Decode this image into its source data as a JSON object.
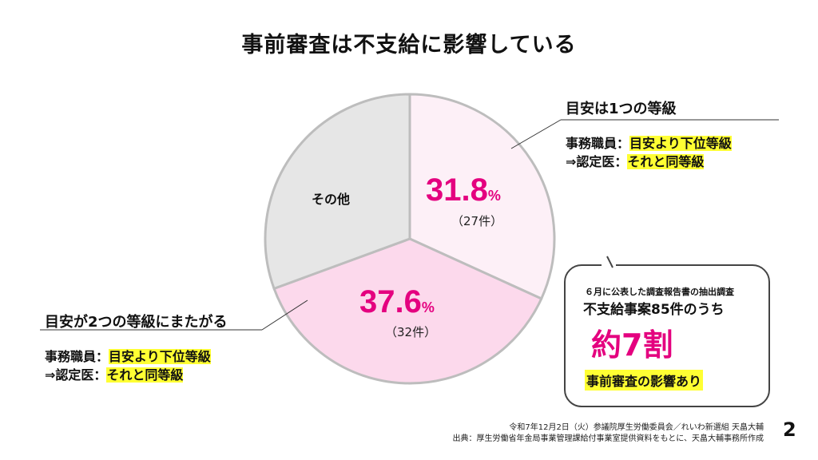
{
  "title": "事前審査は不支給に影響している",
  "chart_data": {
    "type": "pie",
    "start": "top",
    "direction": "clockwise",
    "slices": [
      {
        "label": "目安は1つの等級",
        "percent": 31.8,
        "count_label": "（27件）",
        "color": "#fdf0f7"
      },
      {
        "label": "目安が2つの等級にまたがる",
        "percent": 37.6,
        "count_label": "（32件）",
        "color": "#fcd9ec"
      },
      {
        "label": "その他",
        "percent": 30.6,
        "color": "#e6e6e6"
      }
    ],
    "pct_texts": [
      "31.8",
      "37.6"
    ],
    "pct_unit": "%"
  },
  "right_callout": {
    "heading": "目安は1つの等級",
    "line1_prefix": "事務職員：",
    "line1_hl": "目安より下位等級",
    "line2_prefix": "⇒認定医：",
    "line2_hl": "それと同等級"
  },
  "left_callout": {
    "heading": "目安が2つの等級にまたがる",
    "line1_prefix": "事務職員：",
    "line1_hl": "目安より下位等級",
    "line2_prefix": "⇒認定医：",
    "line2_hl": "それと同等級"
  },
  "summary_box": {
    "line1": "６月に公表した調査報告書の抽出調査",
    "line2": "不支給事案85件のうち",
    "big": "約7割",
    "highlight": "事前審査の影響あり"
  },
  "footer": {
    "line1": "令和7年12月2日（火）参議院厚生労働委員会／れいわ新選組 天畠大輔",
    "line2": "出典：厚生労働省年金局事業管理課給付事業室提供資料をもとに、天畠大輔事務所作成"
  },
  "page_number": "2"
}
